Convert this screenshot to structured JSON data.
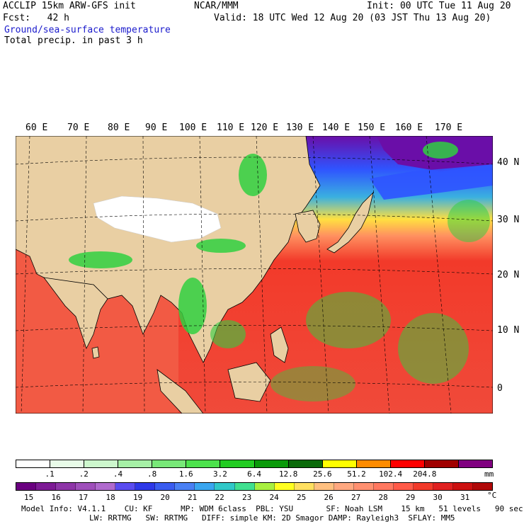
{
  "header": {
    "line1_left": "ACCLIP 15km ARW-GFS init",
    "line1_center": "NCAR/MMM",
    "line1_right": "Init: 00 UTC Tue 11 Aug 20",
    "line2_left": "Fcst:   42 h",
    "line2_right": "Valid: 18 UTC Wed 12 Aug 20 (03 JST Thu 13 Aug 20)",
    "field1": "Ground/sea-surface temperature",
    "field2": "Total precip. in past 3 h"
  },
  "map": {
    "lon_labels": [
      "60 E",
      "70 E",
      "80 E",
      "90 E",
      "100 E",
      "110 E",
      "120 E",
      "130 E",
      "140 E",
      "150 E",
      "160 E",
      "170 E"
    ],
    "lat_labels": [
      "40 N",
      "30 N",
      "20 N",
      "10 N",
      "0"
    ],
    "colors": {
      "land": "#e9cfa3",
      "tibet_snow": "#ffffff",
      "warm_sea": "#f23a2a",
      "cool_sea": "#2f54ff",
      "cold_sea": "#6a0ea8",
      "rain": "#30d040"
    }
  },
  "precip_legend": {
    "labels": [
      ".1",
      ".2",
      ".4",
      ".8",
      "1.6",
      "3.2",
      "6.4",
      "12.8",
      "25.6",
      "51.2",
      "102.4",
      "204.8"
    ],
    "unit": "mm",
    "colors": [
      "#ffffff",
      "#e8fbe8",
      "#cdf7cd",
      "#a6f0a6",
      "#78e878",
      "#4ce24c",
      "#22cc22",
      "#0a9a0a",
      "#0a6a0a",
      "#ffff00",
      "#ff8c00",
      "#ff0000",
      "#a00000",
      "#800080"
    ]
  },
  "temp_legend": {
    "labels": [
      "15",
      "16",
      "17",
      "18",
      "19",
      "20",
      "21",
      "22",
      "23",
      "24",
      "25",
      "26",
      "27",
      "28",
      "29",
      "30",
      "31"
    ],
    "unit": "°C",
    "colors": [
      "#6a0080",
      "#7d1a95",
      "#8e35a8",
      "#9f4fbb",
      "#b06ace",
      "#5a4cf0",
      "#2e38e8",
      "#3a5cf0",
      "#4a80f4",
      "#3aa6f0",
      "#30c8c8",
      "#40e090",
      "#a8f040",
      "#ffff20",
      "#ffe060",
      "#ffc080",
      "#ffa880",
      "#ff9070",
      "#ff7860",
      "#ff5a48",
      "#f23a2a",
      "#e02020",
      "#cc1010",
      "#b00808"
    ]
  },
  "footer": {
    "line1": "Model Info: V4.1.1    CU: KF      MP: WDM 6class  PBL: YSU       SF: Noah LSM    15 km   51 levels   90 sec",
    "line2": "LW: RRTMG   SW: RRTMG   DIFF: simple KM: 2D Smagor DAMP: Rayleigh3  SFLAY: MM5"
  }
}
